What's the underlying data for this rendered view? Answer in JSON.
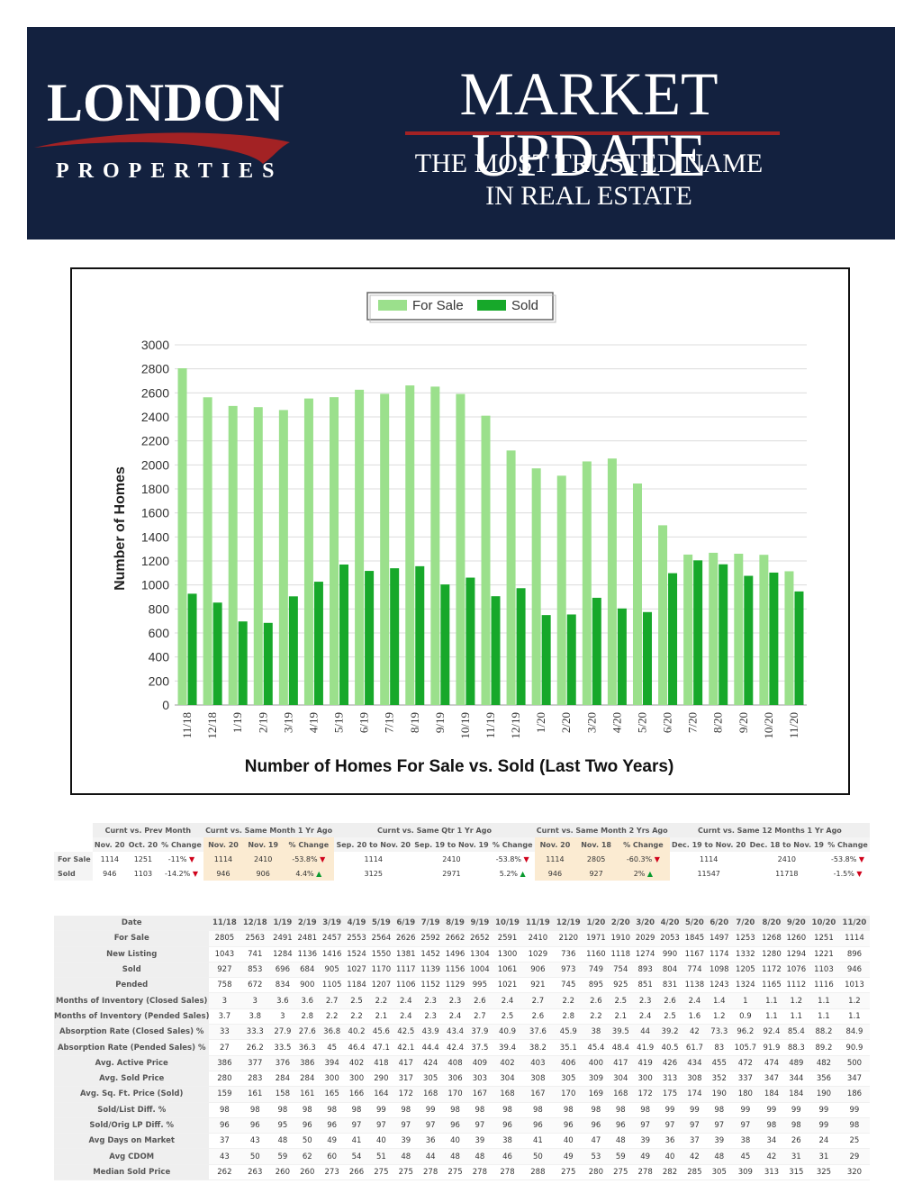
{
  "header": {
    "logo_main": "LONDON",
    "logo_sub": "PROPERTIES",
    "title": "MARKET UPDATE",
    "tagline_line1": "THE MOST TRUSTED NAME",
    "tagline_line2": "IN REAL ESTATE"
  },
  "colors": {
    "banner_bg": "#13213f",
    "accent_red": "#a32224",
    "for_sale": "#9be08c",
    "sold": "#17a82a"
  },
  "chart_data": {
    "type": "bar",
    "title": "Number of Homes For Sale vs. Sold (Last Two Years)",
    "ylabel": "Number of Homes",
    "xlabel": "",
    "ylim": [
      0,
      3000
    ],
    "yticks": [
      0,
      200,
      400,
      600,
      800,
      1000,
      1200,
      1400,
      1600,
      1800,
      2000,
      2200,
      2400,
      2600,
      2800,
      3000
    ],
    "legend_position": "top",
    "grid": true,
    "categories": [
      "11/18",
      "12/18",
      "1/19",
      "2/19",
      "3/19",
      "4/19",
      "5/19",
      "6/19",
      "7/19",
      "8/19",
      "9/19",
      "10/19",
      "11/19",
      "12/19",
      "1/20",
      "2/20",
      "3/20",
      "4/20",
      "5/20",
      "6/20",
      "7/20",
      "8/20",
      "9/20",
      "10/20",
      "11/20"
    ],
    "series": [
      {
        "name": "For Sale",
        "values": [
          2805,
          2563,
          2491,
          2481,
          2457,
          2553,
          2564,
          2626,
          2592,
          2662,
          2652,
          2591,
          2410,
          2120,
          1971,
          1910,
          2029,
          2053,
          1845,
          1497,
          1253,
          1268,
          1260,
          1251,
          1114
        ]
      },
      {
        "name": "Sold",
        "values": [
          927,
          853,
          696,
          684,
          905,
          1027,
          1170,
          1117,
          1139,
          1156,
          1004,
          1061,
          906,
          973,
          749,
          754,
          893,
          804,
          774,
          1098,
          1205,
          1172,
          1076,
          1103,
          946
        ]
      }
    ]
  },
  "summary": {
    "groups": [
      "Curnt vs. Prev Month",
      "Curnt vs. Same Month 1 Yr Ago",
      "Curnt vs. Same Qtr 1 Yr Ago",
      "Curnt vs. Same Month 2 Yrs Ago",
      "Curnt vs. Same 12 Months 1 Yr Ago"
    ],
    "subheaders": [
      "Nov. 20",
      "Oct. 20",
      "% Change",
      "Nov. 20",
      "Nov. 19",
      "% Change",
      "Sep. 20 to Nov. 20",
      "Sep. 19 to Nov. 19",
      "% Change",
      "Nov. 20",
      "Nov. 18",
      "% Change",
      "Dec. 19 to Nov. 20",
      "Dec. 18 to Nov. 19",
      "% Change"
    ],
    "rows": [
      {
        "label": "For Sale",
        "cells": [
          "1114",
          "1251",
          "-11%",
          "1114",
          "2410",
          "-53.8%",
          "1114",
          "2410",
          "-53.8%",
          "1114",
          "2805",
          "-60.3%",
          "1114",
          "2410",
          "-53.8%"
        ],
        "dirs": [
          "down",
          "down",
          "down",
          "down",
          "down"
        ]
      },
      {
        "label": "Sold",
        "cells": [
          "946",
          "1103",
          "-14.2%",
          "946",
          "906",
          "4.4%",
          "3125",
          "2971",
          "5.2%",
          "946",
          "927",
          "2%",
          "11547",
          "11718",
          "-1.5%"
        ],
        "dirs": [
          "down",
          "up",
          "up",
          "up",
          "down"
        ]
      }
    ]
  },
  "stats": {
    "date_label": "Date",
    "dates": [
      "11/18",
      "12/18",
      "1/19",
      "2/19",
      "3/19",
      "4/19",
      "5/19",
      "6/19",
      "7/19",
      "8/19",
      "9/19",
      "10/19",
      "11/19",
      "12/19",
      "1/20",
      "2/20",
      "3/20",
      "4/20",
      "5/20",
      "6/20",
      "7/20",
      "8/20",
      "9/20",
      "10/20",
      "11/20"
    ],
    "rows": [
      {
        "label": "For Sale",
        "values": [
          "2805",
          "2563",
          "2491",
          "2481",
          "2457",
          "2553",
          "2564",
          "2626",
          "2592",
          "2662",
          "2652",
          "2591",
          "2410",
          "2120",
          "1971",
          "1910",
          "2029",
          "2053",
          "1845",
          "1497",
          "1253",
          "1268",
          "1260",
          "1251",
          "1114"
        ]
      },
      {
        "label": "New Listing",
        "values": [
          "1043",
          "741",
          "1284",
          "1136",
          "1416",
          "1524",
          "1550",
          "1381",
          "1452",
          "1496",
          "1304",
          "1300",
          "1029",
          "736",
          "1160",
          "1118",
          "1274",
          "990",
          "1167",
          "1174",
          "1332",
          "1280",
          "1294",
          "1221",
          "896"
        ]
      },
      {
        "label": "Sold",
        "values": [
          "927",
          "853",
          "696",
          "684",
          "905",
          "1027",
          "1170",
          "1117",
          "1139",
          "1156",
          "1004",
          "1061",
          "906",
          "973",
          "749",
          "754",
          "893",
          "804",
          "774",
          "1098",
          "1205",
          "1172",
          "1076",
          "1103",
          "946"
        ]
      },
      {
        "label": "Pended",
        "values": [
          "758",
          "672",
          "834",
          "900",
          "1105",
          "1184",
          "1207",
          "1106",
          "1152",
          "1129",
          "995",
          "1021",
          "921",
          "745",
          "895",
          "925",
          "851",
          "831",
          "1138",
          "1243",
          "1324",
          "1165",
          "1112",
          "1116",
          "1013"
        ]
      },
      {
        "label": "Months of Inventory (Closed Sales)",
        "values": [
          "3",
          "3",
          "3.6",
          "3.6",
          "2.7",
          "2.5",
          "2.2",
          "2.4",
          "2.3",
          "2.3",
          "2.6",
          "2.4",
          "2.7",
          "2.2",
          "2.6",
          "2.5",
          "2.3",
          "2.6",
          "2.4",
          "1.4",
          "1",
          "1.1",
          "1.2",
          "1.1",
          "1.2"
        ]
      },
      {
        "label": "Months of Inventory (Pended Sales)",
        "values": [
          "3.7",
          "3.8",
          "3",
          "2.8",
          "2.2",
          "2.2",
          "2.1",
          "2.4",
          "2.3",
          "2.4",
          "2.7",
          "2.5",
          "2.6",
          "2.8",
          "2.2",
          "2.1",
          "2.4",
          "2.5",
          "1.6",
          "1.2",
          "0.9",
          "1.1",
          "1.1",
          "1.1",
          "1.1"
        ]
      },
      {
        "label": "Absorption Rate (Closed Sales) %",
        "values": [
          "33",
          "33.3",
          "27.9",
          "27.6",
          "36.8",
          "40.2",
          "45.6",
          "42.5",
          "43.9",
          "43.4",
          "37.9",
          "40.9",
          "37.6",
          "45.9",
          "38",
          "39.5",
          "44",
          "39.2",
          "42",
          "73.3",
          "96.2",
          "92.4",
          "85.4",
          "88.2",
          "84.9"
        ]
      },
      {
        "label": "Absorption Rate (Pended Sales) %",
        "values": [
          "27",
          "26.2",
          "33.5",
          "36.3",
          "45",
          "46.4",
          "47.1",
          "42.1",
          "44.4",
          "42.4",
          "37.5",
          "39.4",
          "38.2",
          "35.1",
          "45.4",
          "48.4",
          "41.9",
          "40.5",
          "61.7",
          "83",
          "105.7",
          "91.9",
          "88.3",
          "89.2",
          "90.9"
        ]
      },
      {
        "label": "Avg. Active Price",
        "values": [
          "386",
          "377",
          "376",
          "386",
          "394",
          "402",
          "418",
          "417",
          "424",
          "408",
          "409",
          "402",
          "403",
          "406",
          "400",
          "417",
          "419",
          "426",
          "434",
          "455",
          "472",
          "474",
          "489",
          "482",
          "500"
        ]
      },
      {
        "label": "Avg. Sold Price",
        "values": [
          "280",
          "283",
          "284",
          "284",
          "300",
          "300",
          "290",
          "317",
          "305",
          "306",
          "303",
          "304",
          "308",
          "305",
          "309",
          "304",
          "300",
          "313",
          "308",
          "352",
          "337",
          "347",
          "344",
          "356",
          "347"
        ]
      },
      {
        "label": "Avg. Sq. Ft. Price (Sold)",
        "values": [
          "159",
          "161",
          "158",
          "161",
          "165",
          "166",
          "164",
          "172",
          "168",
          "170",
          "167",
          "168",
          "167",
          "170",
          "169",
          "168",
          "172",
          "175",
          "174",
          "190",
          "180",
          "184",
          "184",
          "190",
          "186"
        ]
      },
      {
        "label": "Sold/List Diff. %",
        "values": [
          "98",
          "98",
          "98",
          "98",
          "98",
          "98",
          "99",
          "98",
          "99",
          "98",
          "98",
          "98",
          "98",
          "98",
          "98",
          "98",
          "98",
          "99",
          "99",
          "98",
          "99",
          "99",
          "99",
          "99",
          "99"
        ]
      },
      {
        "label": "Sold/Orig LP Diff. %",
        "values": [
          "96",
          "96",
          "95",
          "96",
          "96",
          "97",
          "97",
          "97",
          "97",
          "96",
          "97",
          "96",
          "96",
          "96",
          "96",
          "96",
          "97",
          "97",
          "97",
          "97",
          "97",
          "98",
          "98",
          "99",
          "98"
        ]
      },
      {
        "label": "Avg Days on Market",
        "values": [
          "37",
          "43",
          "48",
          "50",
          "49",
          "41",
          "40",
          "39",
          "36",
          "40",
          "39",
          "38",
          "41",
          "40",
          "47",
          "48",
          "39",
          "36",
          "37",
          "39",
          "38",
          "34",
          "26",
          "24",
          "25"
        ]
      },
      {
        "label": "Avg CDOM",
        "values": [
          "43",
          "50",
          "59",
          "62",
          "60",
          "54",
          "51",
          "48",
          "44",
          "48",
          "48",
          "46",
          "50",
          "49",
          "53",
          "59",
          "49",
          "40",
          "42",
          "48",
          "45",
          "42",
          "31",
          "31",
          "29"
        ]
      },
      {
        "label": "Median Sold Price",
        "values": [
          "262",
          "263",
          "260",
          "260",
          "273",
          "266",
          "275",
          "275",
          "278",
          "275",
          "278",
          "278",
          "288",
          "275",
          "280",
          "275",
          "278",
          "282",
          "285",
          "305",
          "309",
          "313",
          "315",
          "325",
          "320"
        ]
      }
    ]
  }
}
